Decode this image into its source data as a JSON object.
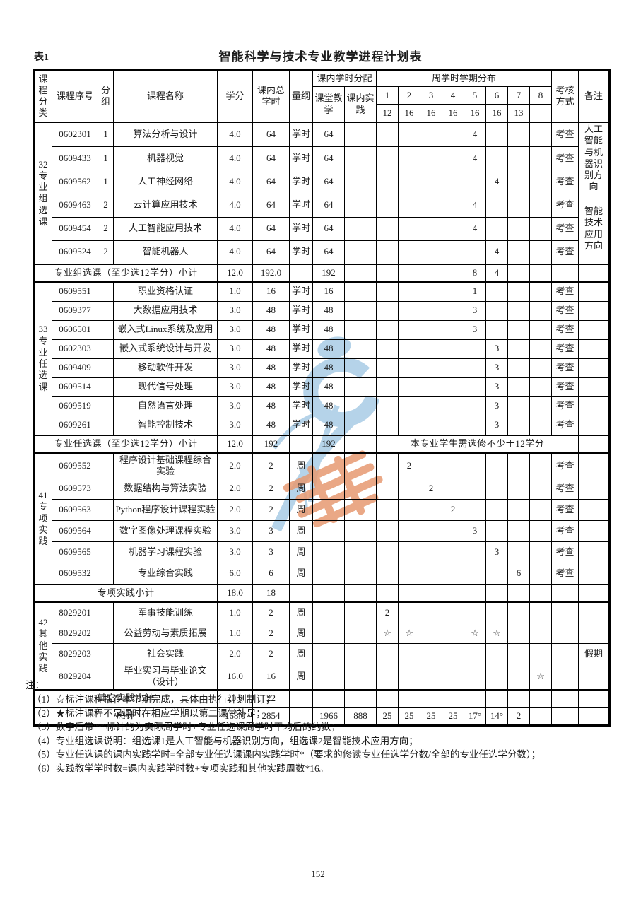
{
  "page": {
    "table_label": "表1",
    "title": "智能科学与技术专业教学进程计划表",
    "page_number": "152"
  },
  "header": {
    "course_category": "课程分类",
    "course_no": "课程序号",
    "group": "分组",
    "course_name": "课程名称",
    "credits": "学分",
    "total_hours": "课内总学时",
    "unit": "量纲",
    "hours_allocation": "课内学时分配",
    "classroom": "课堂教学",
    "practice": "课内实践",
    "weekly_distribution": "周学时学期分布",
    "semesters": [
      "1",
      "2",
      "3",
      "4",
      "5",
      "6",
      "7",
      "8"
    ],
    "semester_weeks": [
      "12",
      "16",
      "16",
      "16",
      "16",
      "16",
      "13",
      ""
    ],
    "assessment": "考核方式",
    "remark": "备注"
  },
  "sections": [
    {
      "code": "32",
      "category": "专业组选课",
      "rows": [
        {
          "no": "0602301",
          "group": "1",
          "name": "算法分析与设计",
          "credits": "4.0",
          "hours": "64",
          "unit": "学时",
          "classroom": "64",
          "practice": "",
          "sem": [
            "",
            "",
            "",
            "",
            "4",
            "",
            "",
            ""
          ],
          "assess": "考查"
        },
        {
          "no": "0609433",
          "group": "1",
          "name": "机器视觉",
          "credits": "4.0",
          "hours": "64",
          "unit": "学时",
          "classroom": "64",
          "practice": "",
          "sem": [
            "",
            "",
            "",
            "",
            "4",
            "",
            "",
            ""
          ],
          "assess": "考查"
        },
        {
          "no": "0609562",
          "group": "1",
          "name": "人工神经网络",
          "credits": "4.0",
          "hours": "64",
          "unit": "学时",
          "classroom": "64",
          "practice": "",
          "sem": [
            "",
            "",
            "",
            "",
            "",
            "4",
            "",
            ""
          ],
          "assess": "考查"
        },
        {
          "no": "0609463",
          "group": "2",
          "name": "云计算应用技术",
          "credits": "4.0",
          "hours": "64",
          "unit": "学时",
          "classroom": "64",
          "practice": "",
          "sem": [
            "",
            "",
            "",
            "",
            "4",
            "",
            "",
            ""
          ],
          "assess": "考查"
        },
        {
          "no": "0609454",
          "group": "2",
          "name": "人工智能应用技术",
          "credits": "4.0",
          "hours": "64",
          "unit": "学时",
          "classroom": "64",
          "practice": "",
          "sem": [
            "",
            "",
            "",
            "",
            "4",
            "",
            "",
            ""
          ],
          "assess": "考查"
        },
        {
          "no": "0609524",
          "group": "2",
          "name": "智能机器人",
          "credits": "4.0",
          "hours": "64",
          "unit": "学时",
          "classroom": "64",
          "practice": "",
          "sem": [
            "",
            "",
            "",
            "",
            "",
            "4",
            "",
            ""
          ],
          "assess": "考查"
        }
      ],
      "remark_merges": [
        {
          "start": 0,
          "span": 3,
          "text": "人工智能与机器识别方向"
        },
        {
          "start": 3,
          "span": 3,
          "text": "智能技术应用方向"
        }
      ],
      "subtotal": {
        "label": "专业组选课（至少选12学分）小计",
        "credits": "12.0",
        "hours": "192.0",
        "unit": "",
        "classroom": "192",
        "practice": "",
        "sem": [
          "",
          "",
          "",
          "",
          "8",
          "4",
          "",
          ""
        ],
        "assess": "",
        "remark": ""
      }
    },
    {
      "code": "33",
      "category": "专业任选课",
      "rows": [
        {
          "no": "0609551",
          "group": "",
          "name": "职业资格认证",
          "credits": "1.0",
          "hours": "16",
          "unit": "学时",
          "classroom": "16",
          "practice": "",
          "sem": [
            "",
            "",
            "",
            "",
            "1",
            "",
            "",
            ""
          ],
          "assess": "考查",
          "remark": ""
        },
        {
          "no": "0609377",
          "group": "",
          "name": "大数据应用技术",
          "credits": "3.0",
          "hours": "48",
          "unit": "学时",
          "classroom": "48",
          "practice": "",
          "sem": [
            "",
            "",
            "",
            "",
            "3",
            "",
            "",
            ""
          ],
          "assess": "考查",
          "remark": ""
        },
        {
          "no": "0606501",
          "group": "",
          "name": "嵌入式Linux系统及应用",
          "credits": "3.0",
          "hours": "48",
          "unit": "学时",
          "classroom": "48",
          "practice": "",
          "sem": [
            "",
            "",
            "",
            "",
            "3",
            "",
            "",
            ""
          ],
          "assess": "考查",
          "remark": ""
        },
        {
          "no": "0602303",
          "group": "",
          "name": "嵌入式系统设计与开发",
          "credits": "3.0",
          "hours": "48",
          "unit": "学时",
          "classroom": "48",
          "practice": "",
          "sem": [
            "",
            "",
            "",
            "",
            "",
            "3",
            "",
            ""
          ],
          "assess": "考查",
          "remark": ""
        },
        {
          "no": "0609409",
          "group": "",
          "name": "移动软件开发",
          "credits": "3.0",
          "hours": "48",
          "unit": "学时",
          "classroom": "48",
          "practice": "",
          "sem": [
            "",
            "",
            "",
            "",
            "",
            "3",
            "",
            ""
          ],
          "assess": "考查",
          "remark": ""
        },
        {
          "no": "0609514",
          "group": "",
          "name": "现代信号处理",
          "credits": "3.0",
          "hours": "48",
          "unit": "学时",
          "classroom": "48",
          "practice": "",
          "sem": [
            "",
            "",
            "",
            "",
            "",
            "3",
            "",
            ""
          ],
          "assess": "考查",
          "remark": ""
        },
        {
          "no": "0609519",
          "group": "",
          "name": "自然语言处理",
          "credits": "3.0",
          "hours": "48",
          "unit": "学时",
          "classroom": "48",
          "practice": "",
          "sem": [
            "",
            "",
            "",
            "",
            "",
            "3",
            "",
            ""
          ],
          "assess": "考查",
          "remark": ""
        },
        {
          "no": "0609261",
          "group": "",
          "name": "智能控制技术",
          "credits": "3.0",
          "hours": "48",
          "unit": "学时",
          "classroom": "48",
          "practice": "",
          "sem": [
            "",
            "",
            "",
            "",
            "",
            "3",
            "",
            ""
          ],
          "assess": "考查",
          "remark": ""
        }
      ],
      "subtotal": {
        "label": "专业任选课（至少选12学分）小计",
        "credits": "12.0",
        "hours": "192",
        "unit": "",
        "classroom": "192",
        "practice": "",
        "merged_note": "本专业学生需选修不少于12学分",
        "remark": ""
      }
    },
    {
      "code": "41",
      "category": "专项实践",
      "rows": [
        {
          "no": "0609552",
          "group": "",
          "name": "程序设计基础课程综合实验",
          "credits": "2.0",
          "hours": "2",
          "unit": "周",
          "classroom": "",
          "practice": "",
          "sem": [
            "",
            "2",
            "",
            "",
            "",
            "",
            "",
            ""
          ],
          "assess": "考查",
          "remark": ""
        },
        {
          "no": "0609573",
          "group": "",
          "name": "数据结构与算法实验",
          "credits": "2.0",
          "hours": "2",
          "unit": "周",
          "classroom": "",
          "practice": "",
          "sem": [
            "",
            "",
            "2",
            "",
            "",
            "",
            "",
            ""
          ],
          "assess": "考查",
          "remark": ""
        },
        {
          "no": "0609563",
          "group": "",
          "name": "Python程序设计课程实验",
          "credits": "2.0",
          "hours": "2",
          "unit": "周",
          "classroom": "",
          "practice": "",
          "sem": [
            "",
            "",
            "",
            "2",
            "",
            "",
            "",
            ""
          ],
          "assess": "考查",
          "remark": ""
        },
        {
          "no": "0609564",
          "group": "",
          "name": "数字图像处理课程实验",
          "credits": "3.0",
          "hours": "3",
          "unit": "周",
          "classroom": "",
          "practice": "",
          "sem": [
            "",
            "",
            "",
            "",
            "3",
            "",
            "",
            ""
          ],
          "assess": "考查",
          "remark": ""
        },
        {
          "no": "0609565",
          "group": "",
          "name": "机器学习课程实验",
          "credits": "3.0",
          "hours": "3",
          "unit": "周",
          "classroom": "",
          "practice": "",
          "sem": [
            "",
            "",
            "",
            "",
            "",
            "3",
            "",
            ""
          ],
          "assess": "考查",
          "remark": ""
        },
        {
          "no": "0609532",
          "group": "",
          "name": "专业综合实践",
          "credits": "6.0",
          "hours": "6",
          "unit": "周",
          "classroom": "",
          "practice": "",
          "sem": [
            "",
            "",
            "",
            "",
            "",
            "",
            "6",
            ""
          ],
          "assess": "考查",
          "remark": ""
        }
      ],
      "subtotal": {
        "label": "专项实践小计",
        "credits": "18.0",
        "hours": "18",
        "unit": "",
        "classroom": "",
        "practice": "",
        "sem": [
          "",
          "",
          "",
          "",
          "",
          "",
          "",
          ""
        ],
        "assess": "",
        "remark": ""
      }
    },
    {
      "code": "42",
      "category": "其他实践",
      "rows": [
        {
          "no": "8029201",
          "group": "",
          "name": "军事技能训练",
          "credits": "1.0",
          "hours": "2",
          "unit": "周",
          "classroom": "",
          "practice": "",
          "sem": [
            "2",
            "",
            "",
            "",
            "",
            "",
            "",
            ""
          ],
          "assess": "",
          "remark": ""
        },
        {
          "no": "8029202",
          "group": "",
          "name": "公益劳动与素质拓展",
          "credits": "1.0",
          "hours": "2",
          "unit": "周",
          "classroom": "",
          "practice": "",
          "sem": [
            "☆",
            "☆",
            "",
            "",
            "☆",
            "☆",
            "",
            ""
          ],
          "assess": "",
          "remark": ""
        },
        {
          "no": "8029203",
          "group": "",
          "name": "社会实践",
          "credits": "2.0",
          "hours": "2",
          "unit": "周",
          "classroom": "",
          "practice": "",
          "sem": [
            "",
            "",
            "",
            "",
            "",
            "",
            "",
            ""
          ],
          "assess": "",
          "remark": "假期"
        },
        {
          "no": "8029204",
          "group": "",
          "name": "毕业实习与毕业论文（设计）",
          "credits": "16.0",
          "hours": "16",
          "unit": "周",
          "classroom": "",
          "practice": "",
          "sem": [
            "",
            "",
            "",
            "",
            "",
            "",
            "",
            "☆"
          ],
          "assess": "",
          "remark": ""
        }
      ],
      "subtotal": {
        "label": "其它实践小计",
        "credits": "20.0",
        "hours": "22",
        "unit": "",
        "classroom": "",
        "practice": "",
        "sem": [
          "",
          "",
          "",
          "",
          "",
          "",
          "",
          ""
        ],
        "assess": "",
        "remark": ""
      }
    }
  ],
  "total_row": {
    "label": "总计",
    "credits": "168.0",
    "hours": "2854",
    "unit": "",
    "classroom": "1966",
    "practice": "888",
    "sem": [
      "25",
      "25",
      "25",
      "25",
      "17°",
      "14°",
      "2",
      ""
    ],
    "assess": "",
    "remark": ""
  },
  "notes": {
    "label": "注：",
    "items": [
      "（1）☆标注课程指在本学期完成，具体由执行计划制订；",
      "（2）★标注课程不足课时在相应学期以第二课堂补足；",
      "（3）数字后带“°”标计的为实际周学时+专业任选课周学时平均后的约数；",
      "（4）专业组选课说明：组选课1是人工智能与机器识别方向，组选课2是智能技术应用方向；",
      "（5）专业任选课的课内实践学时=全部专业任选课课内实践学时*（要求的修读专业任选学分数/全部的专业任选学分数）；",
      "（6）实践教学学时数=课内实践学时数+专项实践和其他实践周数*16。"
    ]
  },
  "watermark": {
    "name": "university-logo-watermark",
    "blue": "#aecfe7",
    "orange": "#e79a72"
  }
}
